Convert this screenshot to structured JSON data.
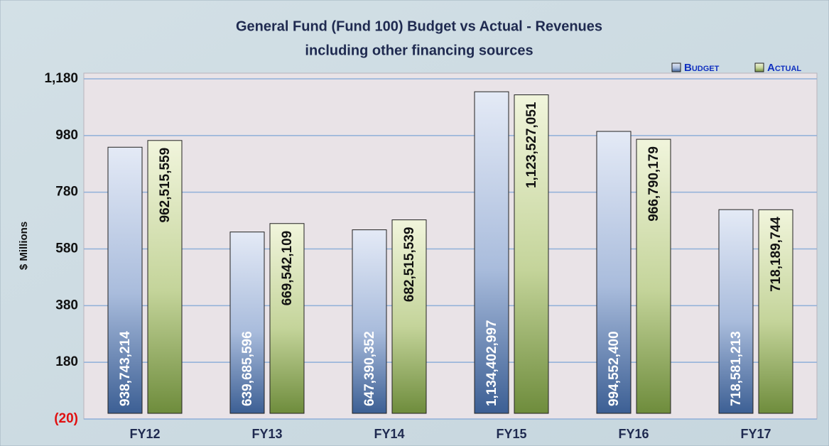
{
  "chart_data": {
    "type": "bar",
    "title": "General Fund (Fund 100) Budget vs Actual - Revenues",
    "subtitle": "including other financing sources",
    "y_label": "$ Millions",
    "categories": [
      "FY12",
      "FY13",
      "FY14",
      "FY15",
      "FY16",
      "FY17"
    ],
    "series": [
      {
        "name": "Budget",
        "color": "#3c5f94",
        "values": [
          938.743214,
          639.685596,
          647.390352,
          1134.402997,
          994.5524,
          718.581213
        ],
        "value_labels": [
          "938,743,214",
          "639,685,596",
          "647,390,352",
          "1,134,402,997",
          "994,552,400",
          "718,581,213"
        ]
      },
      {
        "name": "Actual",
        "color": "#6e8c3c",
        "values": [
          962.515559,
          669.542109,
          682.515539,
          1123.527051,
          966.790179,
          718.189744
        ],
        "value_labels": [
          "962,515,559",
          "669,542,109",
          "682,515,539",
          "1,123,527,051",
          "966,790,179",
          "718,189,744"
        ]
      }
    ],
    "ylim": [
      -20,
      1200
    ],
    "yticks": [
      {
        "value": -20,
        "label": "(20)"
      },
      180,
      380,
      580,
      780,
      980,
      {
        "value": 1180,
        "label": "1,180"
      }
    ],
    "grid": true,
    "legend": "top-right"
  }
}
